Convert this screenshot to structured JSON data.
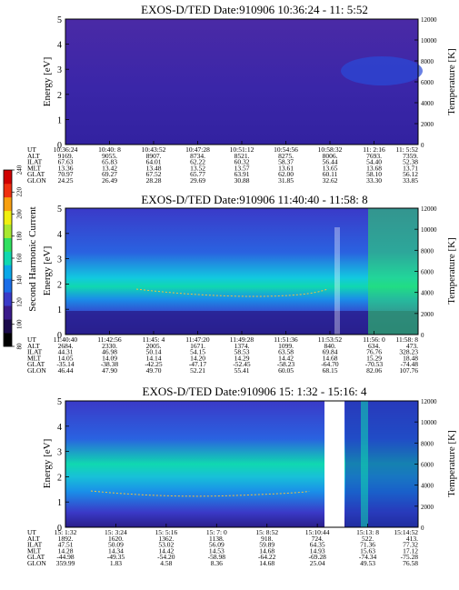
{
  "colorbar": {
    "label": "Second Harmonic Current",
    "ticks": [
      "80",
      "100",
      "120",
      "140",
      "160",
      "180",
      "200",
      "220",
      "240"
    ],
    "colors": [
      "#000000",
      "#1a0a4a",
      "#3a1a8a",
      "#3a3ac8",
      "#1a6ee8",
      "#0aa8e8",
      "#10d8b0",
      "#30e060",
      "#a8e830",
      "#f0f010",
      "#f8a010",
      "#f03010",
      "#d00000"
    ]
  },
  "chart_data": [
    {
      "type": "heatmap",
      "title": "EXOS-D/TED  Date:910906  10:36:24 - 11: 5:52",
      "ylabel": "Energy [eV]",
      "ylabel_right": "Temperature [K]",
      "ylim": [
        0,
        5
      ],
      "ylim_right": [
        0,
        12000
      ],
      "yticks": [
        "0",
        "1",
        "2",
        "3",
        "4",
        "5"
      ],
      "yticks_right": [
        "0",
        "2000",
        "4000",
        "6000",
        "8000",
        "10000",
        "12000"
      ],
      "table": {
        "labels": [
          "UT",
          "ALT",
          "ILAT",
          "MLT",
          "GLAT",
          "GLON"
        ],
        "columns": [
          [
            "10:36:24",
            "9169.",
            "67.63",
            "13.36",
            "70.97",
            "24.25"
          ],
          [
            "10:40: 8",
            "9055.",
            "65.83",
            "13.42",
            "69.27",
            "26.49"
          ],
          [
            "10:43:52",
            "8907.",
            "64.01",
            "13.48",
            "67.52",
            "28.28"
          ],
          [
            "10:47:28",
            "8734.",
            "62.22",
            "13.52",
            "65.77",
            "29.69"
          ],
          [
            "10:51:12",
            "8521.",
            "60.32",
            "13.57",
            "63.91",
            "30.88"
          ],
          [
            "10:54:56",
            "8275.",
            "58.37",
            "13.61",
            "62.00",
            "31.85"
          ],
          [
            "10:58:32",
            "8006.",
            "56.44",
            "13.65",
            "60.11",
            "32.62"
          ],
          [
            "11: 2:16",
            "7693.",
            "54.40",
            "13.68",
            "58.10",
            "33.30"
          ],
          [
            "11: 5:52",
            "7359.",
            "52.38",
            "13.71",
            "56.12",
            "33.85"
          ]
        ]
      }
    },
    {
      "type": "heatmap",
      "title": "EXOS-D/TED  Date:910906  11:40:40 - 11:58: 8",
      "ylabel": "Energy [eV]",
      "ylabel_right": "Temperature [K]",
      "ylim": [
        0,
        5
      ],
      "ylim_right": [
        0,
        12000
      ],
      "yticks": [
        "0",
        "1",
        "2",
        "3",
        "4",
        "5"
      ],
      "yticks_right": [
        "0",
        "2000",
        "4000",
        "6000",
        "8000",
        "10000",
        "12000"
      ],
      "table": {
        "labels": [
          "UT",
          "ALT",
          "ILAT",
          "MLT",
          "GLAT",
          "GLON"
        ],
        "columns": [
          [
            "11:40:40",
            "2684.",
            "44.31",
            "14.05",
            "-35.14",
            "46.44"
          ],
          [
            "11:42:56",
            "2330.",
            "46.98",
            "14.09",
            "-38.38",
            "47.90"
          ],
          [
            "11:45: 4",
            "2005.",
            "50.14",
            "14.14",
            "-42.25",
            "49.70"
          ],
          [
            "11:47:20",
            "1671.",
            "54.15",
            "14.20",
            "-47.17",
            "52.21"
          ],
          [
            "11:49:28",
            "1374.",
            "58.53",
            "14.29",
            "-52.45",
            "55.41"
          ],
          [
            "11:51:36",
            "1099.",
            "63.58",
            "14.42",
            "-58.23",
            "60.05"
          ],
          [
            "11:53:52",
            "840.",
            "69.84",
            "14.68",
            "-64.70",
            "68.15"
          ],
          [
            "11:56: 0",
            "634.",
            "76.76",
            "15.29",
            "-70.53",
            "82.06"
          ],
          [
            "11:58: 8",
            "473.",
            "328.23",
            "18.48",
            "-74.48",
            "107.76"
          ]
        ]
      }
    },
    {
      "type": "heatmap",
      "title": "EXOS-D/TED  Date:910906  15: 1:32 - 15:16: 4",
      "ylabel": "Energy [eV]",
      "ylabel_right": "Temperature [K]",
      "ylim": [
        0,
        5
      ],
      "ylim_right": [
        0,
        12000
      ],
      "yticks": [
        "0",
        "1",
        "2",
        "3",
        "4",
        "5"
      ],
      "yticks_right": [
        "0",
        "2000",
        "4000",
        "6000",
        "8000",
        "10000",
        "12000"
      ],
      "table": {
        "labels": [
          "UT",
          "ALT",
          "ILAT",
          "MLT",
          "GLAT",
          "GLON"
        ],
        "columns": [
          [
            "15: 1:32",
            "1892.",
            "47.51",
            "14.28",
            "-44.98",
            "359.99"
          ],
          [
            "15: 3:24",
            "1620.",
            "50.09",
            "14.34",
            "-49.35",
            "1.83"
          ],
          [
            "15: 5:16",
            "1362.",
            "53.02",
            "14.42",
            "-54.20",
            "4.58"
          ],
          [
            "15: 7: 0",
            "1138.",
            "56.09",
            "14.53",
            "-58.98",
            "8.36"
          ],
          [
            "15: 8:52",
            "918.",
            "59.89",
            "14.68",
            "-64.22",
            "14.68"
          ],
          [
            "15:10:44",
            "724.",
            "64.35",
            "14.93",
            "-69.28",
            "25.04"
          ],
          [
            "15:13: 8",
            "522.",
            "71.36",
            "15.63",
            "-74.34",
            "49.53"
          ],
          [
            "15:14:52",
            "413.",
            "77.32",
            "17.12",
            "-75.28",
            "76.58"
          ]
        ]
      }
    }
  ]
}
